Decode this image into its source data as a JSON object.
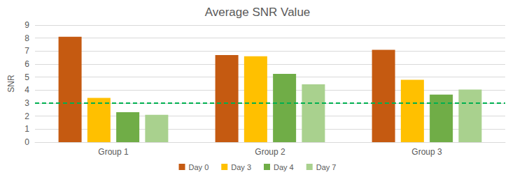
{
  "chart_data": {
    "type": "bar",
    "title": "Average SNR Value",
    "y_label": "SNR",
    "categories": [
      "Group 1",
      "Group 2",
      "Group 3"
    ],
    "series": [
      {
        "name": "Day 0",
        "color": "#c55a11",
        "values": [
          8.1,
          6.7,
          7.1
        ]
      },
      {
        "name": "Day 3",
        "color": "#ffc000",
        "values": [
          3.4,
          6.6,
          4.8
        ]
      },
      {
        "name": "Day 4",
        "color": "#70ad47",
        "values": [
          2.3,
          5.25,
          3.65
        ]
      },
      {
        "name": "Day 7",
        "color": "#a9d18e",
        "values": [
          2.1,
          4.45,
          4.05
        ]
      }
    ],
    "reference_line": {
      "value": 3,
      "color": "#00b050",
      "line_style": "dashed"
    },
    "ylim": [
      0,
      9
    ],
    "yticks": [
      0,
      1,
      2,
      3,
      4,
      5,
      6,
      7,
      8,
      9
    ],
    "grid": true,
    "legend": "bottom"
  }
}
